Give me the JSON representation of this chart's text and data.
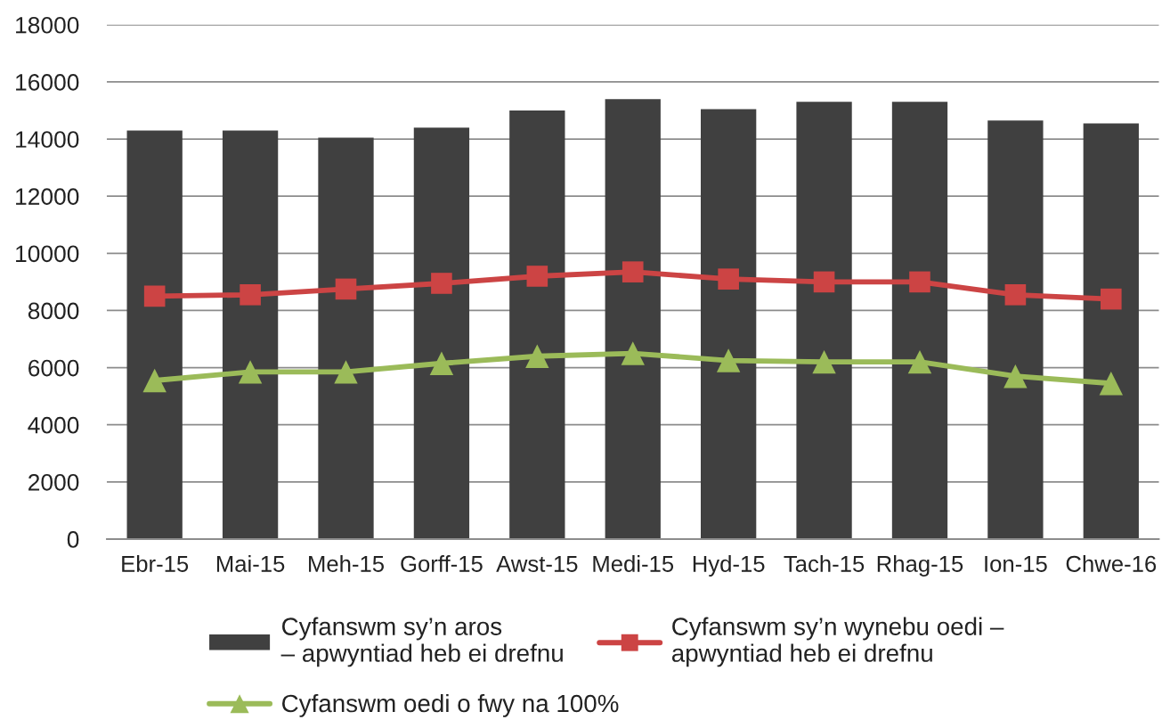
{
  "chart_data": {
    "type": "bar",
    "categories": [
      "Ebr-15",
      "Mai-15",
      "Meh-15",
      "Gorff-15",
      "Awst-15",
      "Medi-15",
      "Hyd-15",
      "Tach-15",
      "Rhag-15",
      "Ion-15",
      "Chwe-16"
    ],
    "series": [
      {
        "name": "Cyfanswm sy’n aros\n– apwyntiad heb ei drefnu",
        "color": "#404040",
        "values": [
          14300,
          14300,
          14050,
          14400,
          15000,
          15400,
          15050,
          15300,
          15300,
          14650,
          14550
        ]
      },
      {
        "name": "Cyfanswm sy’n wynebu oedi –\napwyntiad heb ei drefnu",
        "type": "line",
        "marker": "square",
        "color": "#cc4444",
        "values": [
          8500,
          8550,
          8750,
          8950,
          9200,
          9350,
          9100,
          9000,
          9000,
          8550,
          8400
        ]
      },
      {
        "name": "Cyfanswm oedi o fwy na 100%",
        "type": "line",
        "marker": "triangle",
        "color": "#9bbb59",
        "values": [
          5550,
          5850,
          5850,
          6150,
          6400,
          6500,
          6250,
          6200,
          6200,
          5700,
          5450
        ]
      }
    ],
    "ylim": [
      0,
      18000
    ],
    "yticks": [
      0,
      2000,
      4000,
      6000,
      8000,
      10000,
      12000,
      14000,
      16000,
      18000
    ],
    "grid": "y",
    "legend": "bottom"
  }
}
